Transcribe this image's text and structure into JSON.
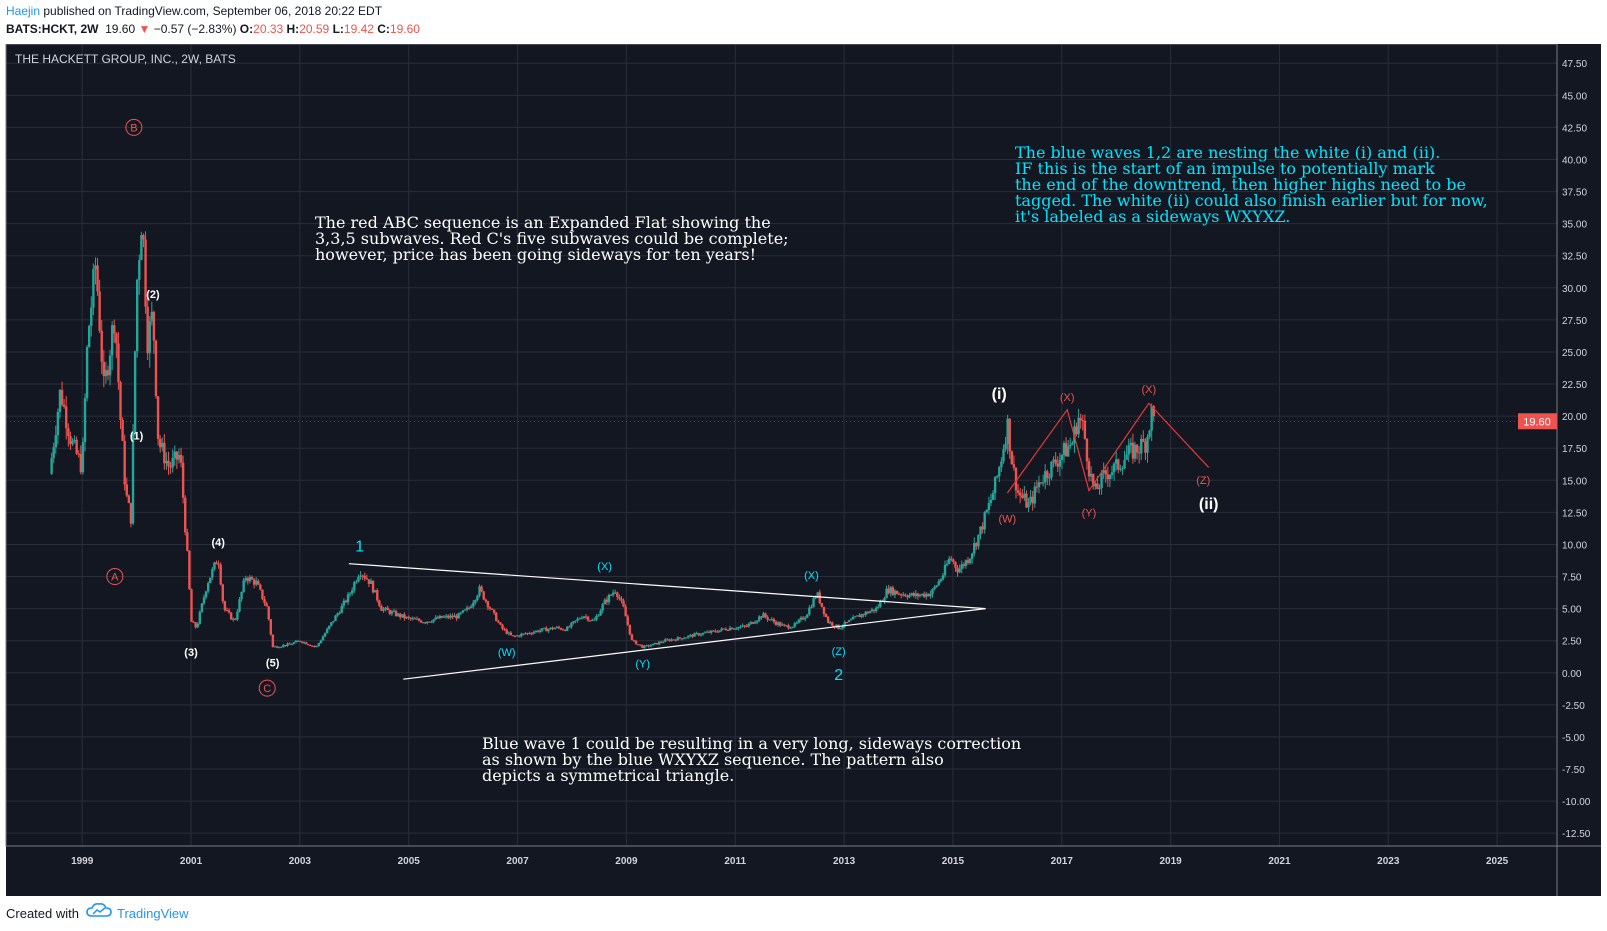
{
  "header": {
    "author": "Haejin",
    "published": "published on TradingView.com, September 06, 2018 20:22 EDT",
    "symbol": "BATS:HCKT, 2W",
    "last": "19.60",
    "change": "−0.57 (−2.83%)",
    "o_label": "O:",
    "o_value": "20.33",
    "h_label": "H:",
    "h_value": "20.59",
    "l_label": "L:",
    "l_value": "19.42",
    "c_label": "C:",
    "c_value": "19.60"
  },
  "footer": {
    "created_with": "Created with",
    "brand": "TradingView"
  },
  "colors": {
    "up": "#26a69a",
    "down": "#ef5350",
    "background": "#131722",
    "grid": "#2a2e39",
    "blue_label": "#00e5ff",
    "red_label": "#ef5350",
    "white_label": "#ffffff"
  },
  "chart_data": {
    "type": "candlestick",
    "title": "THE HACKETT GROUP, INC., 2W, BATS",
    "last_price_label": "19.60",
    "ylim": [
      -13.5,
      49
    ],
    "xlim": [
      1997.6,
      2026.1
    ],
    "y_ticks": [
      "47.50",
      "45.00",
      "42.50",
      "40.00",
      "37.50",
      "35.00",
      "32.50",
      "30.00",
      "27.50",
      "25.00",
      "22.50",
      "20.00",
      "17.50",
      "15.00",
      "12.50",
      "10.00",
      "7.50",
      "5.00",
      "2.50",
      "0.00",
      "-2.50",
      "-5.00",
      "-7.50",
      "-10.00",
      "-12.50"
    ],
    "x_ticks": [
      "1999",
      "2001",
      "2003",
      "2005",
      "2007",
      "2009",
      "2011",
      "2013",
      "2015",
      "2017",
      "2019",
      "2021",
      "2023",
      "2025"
    ],
    "grid": true,
    "price_path": [
      [
        1998.4,
        15.5
      ],
      [
        1998.6,
        22
      ],
      [
        1998.8,
        18
      ],
      [
        1999.0,
        16
      ],
      [
        1999.1,
        26
      ],
      [
        1999.25,
        32
      ],
      [
        1999.4,
        22
      ],
      [
        1999.6,
        28
      ],
      [
        1999.7,
        20
      ],
      [
        1999.8,
        14
      ],
      [
        1999.9,
        12
      ],
      [
        2000.0,
        30
      ],
      [
        2000.1,
        36
      ],
      [
        2000.2,
        26
      ],
      [
        2000.3,
        28
      ],
      [
        2000.4,
        18
      ],
      [
        2000.6,
        16
      ],
      [
        2000.8,
        17
      ],
      [
        2000.95,
        8
      ],
      [
        2001.0,
        4
      ],
      [
        2001.1,
        3.5
      ],
      [
        2001.3,
        7
      ],
      [
        2001.5,
        9
      ],
      [
        2001.6,
        5
      ],
      [
        2001.8,
        4
      ],
      [
        2002.0,
        7.5
      ],
      [
        2002.2,
        7
      ],
      [
        2002.4,
        5
      ],
      [
        2002.5,
        2
      ],
      [
        2002.8,
        2.2
      ],
      [
        2003.0,
        2.5
      ],
      [
        2003.3,
        2
      ],
      [
        2003.6,
        4
      ],
      [
        2003.9,
        6
      ],
      [
        2004.1,
        8
      ],
      [
        2004.3,
        7
      ],
      [
        2004.5,
        5
      ],
      [
        2004.8,
        4.5
      ],
      [
        2005.0,
        4.2
      ],
      [
        2005.3,
        4
      ],
      [
        2005.6,
        4.3
      ],
      [
        2005.9,
        4.4
      ],
      [
        2006.1,
        5
      ],
      [
        2006.3,
        6.5
      ],
      [
        2006.5,
        5
      ],
      [
        2006.7,
        3.5
      ],
      [
        2006.9,
        2.8
      ],
      [
        2007.1,
        3
      ],
      [
        2007.4,
        3.3
      ],
      [
        2007.7,
        3.5
      ],
      [
        2007.9,
        3.4
      ],
      [
        2008.2,
        4.5
      ],
      [
        2008.4,
        4
      ],
      [
        2008.6,
        5.5
      ],
      [
        2008.8,
        6.5
      ],
      [
        2008.95,
        5
      ],
      [
        2009.1,
        2.5
      ],
      [
        2009.3,
        2
      ],
      [
        2009.5,
        2.2
      ],
      [
        2009.7,
        2.5
      ],
      [
        2010.0,
        2.7
      ],
      [
        2010.3,
        3
      ],
      [
        2010.6,
        3.2
      ],
      [
        2010.9,
        3.5
      ],
      [
        2011.2,
        3.6
      ],
      [
        2011.5,
        4.5
      ],
      [
        2011.7,
        4
      ],
      [
        2011.9,
        3.6
      ],
      [
        2012.1,
        3.7
      ],
      [
        2012.3,
        4.5
      ],
      [
        2012.5,
        6.2
      ],
      [
        2012.7,
        4
      ],
      [
        2012.9,
        3.5
      ],
      [
        2013.1,
        4
      ],
      [
        2013.3,
        4.5
      ],
      [
        2013.6,
        5
      ],
      [
        2013.8,
        6.5
      ],
      [
        2014.0,
        6.2
      ],
      [
        2014.3,
        6
      ],
      [
        2014.6,
        6.2
      ],
      [
        2014.8,
        7.5
      ],
      [
        2014.95,
        9
      ],
      [
        2015.1,
        8
      ],
      [
        2015.3,
        9
      ],
      [
        2015.5,
        11
      ],
      [
        2015.7,
        13.5
      ],
      [
        2015.8,
        15
      ],
      [
        2015.9,
        17
      ],
      [
        2016.0,
        19.5
      ],
      [
        2016.1,
        16
      ],
      [
        2016.2,
        14
      ],
      [
        2016.4,
        13
      ],
      [
        2016.6,
        15
      ],
      [
        2016.8,
        16
      ],
      [
        2017.0,
        17
      ],
      [
        2017.2,
        18
      ],
      [
        2017.3,
        20
      ],
      [
        2017.4,
        19
      ],
      [
        2017.5,
        16
      ],
      [
        2017.6,
        14
      ],
      [
        2017.8,
        15.5
      ],
      [
        2018.0,
        16
      ],
      [
        2018.2,
        17
      ],
      [
        2018.4,
        17.5
      ],
      [
        2018.55,
        18
      ],
      [
        2018.65,
        20.3
      ],
      [
        2018.7,
        19.6
      ]
    ],
    "series": [
      {
        "name": "Triangle upper",
        "points": [
          [
            2003.9,
            8.5
          ],
          [
            2015.6,
            5
          ]
        ]
      },
      {
        "name": "Triangle lower",
        "points": [
          [
            2004.9,
            -0.5
          ],
          [
            2015.6,
            5
          ]
        ]
      },
      {
        "name": "Red (X)-(Z) projection",
        "points": [
          [
            2016.0,
            14
          ],
          [
            2017.1,
            20.5
          ],
          [
            2017.5,
            14.2
          ],
          [
            2018.6,
            21
          ],
          [
            2019.7,
            16
          ]
        ]
      }
    ],
    "wave_labels": [
      {
        "text": "B",
        "x": 1999.95,
        "y": 42.5,
        "color": "red",
        "circled": true
      },
      {
        "text": "A",
        "x": 1999.6,
        "y": 7.5,
        "color": "red",
        "circled": true
      },
      {
        "text": "C",
        "x": 2002.4,
        "y": -1.2,
        "color": "red",
        "circled": true
      },
      {
        "text": "(1)",
        "x": 2000.0,
        "y": 18.5,
        "color": "white"
      },
      {
        "text": "(2)",
        "x": 2000.3,
        "y": 29.5,
        "color": "white"
      },
      {
        "text": "(3)",
        "x": 2001.0,
        "y": 1.6,
        "color": "white"
      },
      {
        "text": "(4)",
        "x": 2001.5,
        "y": 10.2,
        "color": "white"
      },
      {
        "text": "(5)",
        "x": 2002.5,
        "y": 0.8,
        "color": "white"
      },
      {
        "text": "1",
        "x": 2004.1,
        "y": 9.9,
        "color": "blue",
        "large": true
      },
      {
        "text": "(X)",
        "x": 2008.6,
        "y": 8.3,
        "color": "blue"
      },
      {
        "text": "(W)",
        "x": 2006.8,
        "y": 1.6,
        "color": "blue"
      },
      {
        "text": "(Y)",
        "x": 2009.3,
        "y": 0.7,
        "color": "blue"
      },
      {
        "text": "(X)",
        "x": 2012.4,
        "y": 7.6,
        "color": "blue"
      },
      {
        "text": "(Z)",
        "x": 2012.9,
        "y": 1.7,
        "color": "blue"
      },
      {
        "text": "2",
        "x": 2012.9,
        "y": -0.1,
        "color": "blue",
        "large": true
      },
      {
        "text": "(i)",
        "x": 2015.85,
        "y": 21.8,
        "color": "white",
        "large": true
      },
      {
        "text": "(X)",
        "x": 2017.1,
        "y": 21.5,
        "color": "red"
      },
      {
        "text": "(W)",
        "x": 2016.0,
        "y": 12.0,
        "color": "red"
      },
      {
        "text": "(Y)",
        "x": 2017.5,
        "y": 12.5,
        "color": "red"
      },
      {
        "text": "(X)",
        "x": 2018.6,
        "y": 22.1,
        "color": "red"
      },
      {
        "text": "(Z)",
        "x": 2019.6,
        "y": 15.0,
        "color": "red"
      },
      {
        "text": "(ii)",
        "x": 2019.7,
        "y": 13.2,
        "color": "white",
        "large": true
      }
    ],
    "annotations": [
      "The red ABC sequence is an Expanded Flat showing the\n3,3,5 subwaves. Red C's five subwaves could be complete;\nhowever, price has been going sideways for ten years!",
      "The blue waves 1,2 are nesting the white (i) and (ii).\nIF this is the start of an impulse to potentially mark\nthe end of the downtrend, then higher highs need to be\ntagged. The white (ii) could also finish earlier but for now,\nit's labeled as a sideways WXYXZ.",
      "Blue wave 1 could be resulting in a very long, sideways correction\nas shown by the blue WXYXZ sequence. The pattern also\ndepicts a symmetrical triangle."
    ]
  }
}
